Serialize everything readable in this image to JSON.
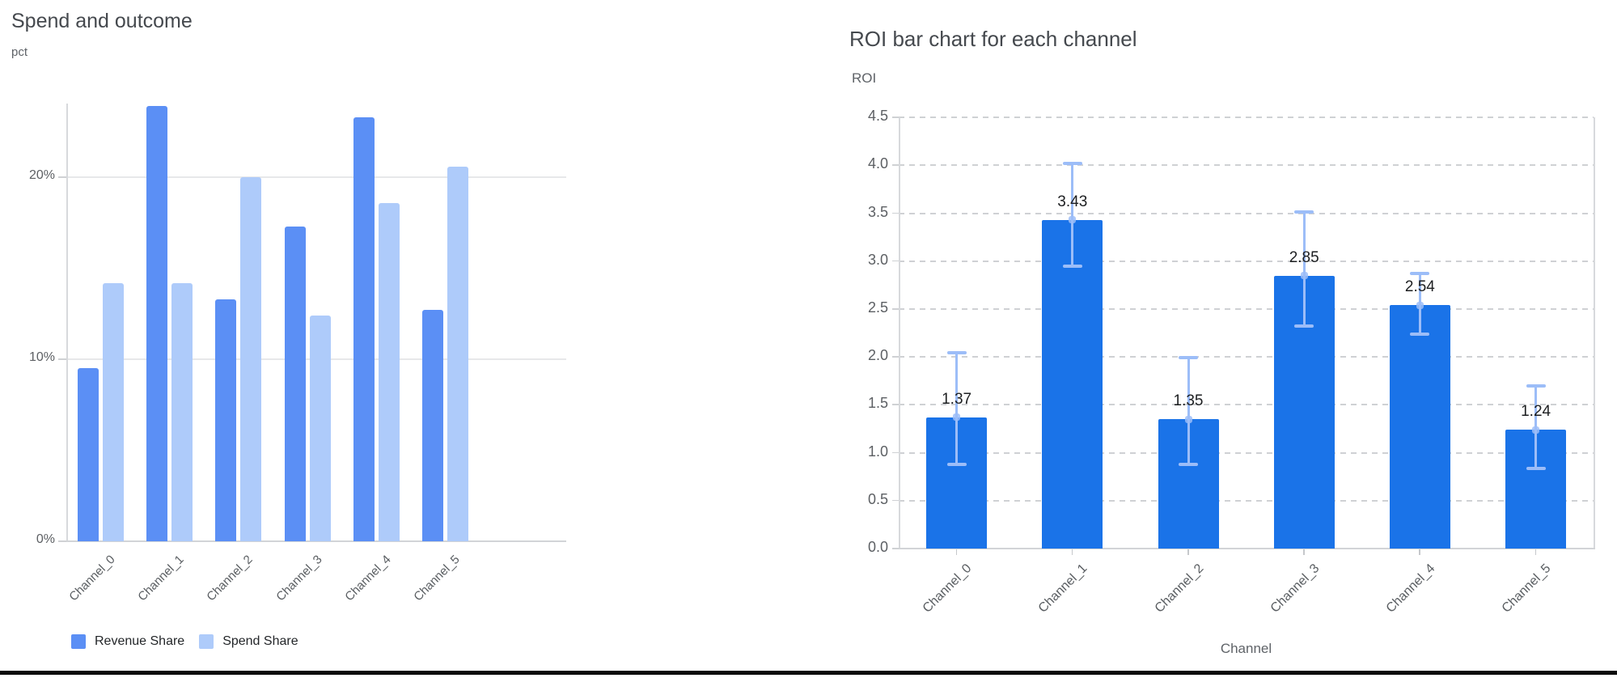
{
  "page": {
    "background": "#ffffff",
    "bottom_rule_color": "#0a0a0a"
  },
  "chart_data": [
    {
      "type": "bar",
      "title": "Spend and outcome",
      "ylabel": "pct",
      "xlabel": "",
      "categories": [
        "Channel_0",
        "Channel_1",
        "Channel_2",
        "Channel_3",
        "Channel_4",
        "Channel_5"
      ],
      "series": [
        {
          "name": "Revenue Share",
          "color": "#5b8ff5",
          "values": [
            9.5,
            23.9,
            13.3,
            17.3,
            23.3,
            12.7
          ]
        },
        {
          "name": "Spend Share",
          "color": "#aecbfa",
          "values": [
            14.2,
            14.2,
            20.0,
            12.4,
            18.6,
            20.6
          ]
        }
      ],
      "y_ticks": [
        {
          "v": 0,
          "label": "0%"
        },
        {
          "v": 10,
          "label": "10%"
        },
        {
          "v": 20,
          "label": "20%"
        }
      ],
      "ylim": [
        0,
        24.05
      ],
      "grid": "solid",
      "legend_position": "bottom"
    },
    {
      "type": "bar",
      "title": "ROI bar chart for each channel",
      "ylabel": "ROI",
      "xlabel": "Channel",
      "categories": [
        "Channel_0",
        "Channel_1",
        "Channel_2",
        "Channel_3",
        "Channel_4",
        "Channel_5"
      ],
      "series": [
        {
          "name": "ROI",
          "color": "#1a73e8",
          "values": [
            1.37,
            3.43,
            1.35,
            2.85,
            2.54,
            1.24
          ]
        }
      ],
      "value_labels": [
        "1.37",
        "3.43",
        "1.35",
        "2.85",
        "2.54",
        "1.24"
      ],
      "error_bars": {
        "color": "#9cbdf8",
        "low": [
          0.88,
          2.95,
          0.88,
          2.32,
          2.24,
          0.84
        ],
        "high": [
          2.04,
          4.02,
          1.99,
          3.51,
          2.87,
          1.7
        ]
      },
      "y_ticks": [
        {
          "v": 0.0,
          "label": "0.0"
        },
        {
          "v": 0.5,
          "label": "0.5"
        },
        {
          "v": 1.0,
          "label": "1.0"
        },
        {
          "v": 1.5,
          "label": "1.5"
        },
        {
          "v": 2.0,
          "label": "2.0"
        },
        {
          "v": 2.5,
          "label": "2.5"
        },
        {
          "v": 3.0,
          "label": "3.0"
        },
        {
          "v": 3.5,
          "label": "3.5"
        },
        {
          "v": 4.0,
          "label": "4.0"
        },
        {
          "v": 4.5,
          "label": "4.5"
        }
      ],
      "ylim": [
        0,
        4.5
      ],
      "grid": "dashed",
      "legend_position": "none"
    }
  ]
}
